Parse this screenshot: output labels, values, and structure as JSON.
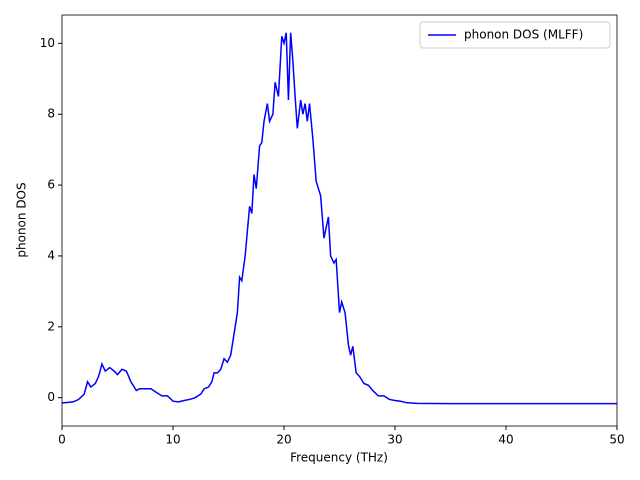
{
  "chart_data": {
    "type": "line",
    "x_label": "Frequency (THz)",
    "y_label": "phonon DOS",
    "xlim": [
      0,
      50
    ],
    "ylim": [
      -0.8,
      10.8
    ],
    "xticks": [
      0,
      10,
      20,
      30,
      40,
      50
    ],
    "yticks": [
      0,
      2,
      4,
      6,
      8,
      10
    ],
    "legend": "upper right",
    "x": [
      0,
      1,
      1.5,
      2,
      2.3,
      2.6,
      3,
      3.3,
      3.6,
      3.9,
      4.3,
      4.7,
      5,
      5.4,
      5.8,
      6.2,
      6.7,
      7,
      7.5,
      8,
      8.5,
      9,
      9.5,
      10,
      10.5,
      11,
      11.5,
      12,
      12.5,
      12.8,
      13.2,
      13.5,
      13.7,
      14,
      14.3,
      14.6,
      14.9,
      15.2,
      15.5,
      15.8,
      16,
      16.2,
      16.5,
      16.7,
      16.9,
      17.1,
      17.3,
      17.5,
      17.8,
      18,
      18.2,
      18.5,
      18.7,
      19,
      19.2,
      19.5,
      19.8,
      20,
      20.2,
      20.4,
      20.6,
      20.8,
      21,
      21.2,
      21.5,
      21.7,
      21.9,
      22.1,
      22.3,
      22.6,
      22.9,
      23.1,
      23.3,
      23.6,
      23.8,
      24,
      24.2,
      24.5,
      24.7,
      25,
      25.2,
      25.5,
      25.8,
      26,
      26.2,
      26.5,
      26.8,
      27.2,
      27.6,
      28,
      28.5,
      29,
      29.5,
      30,
      30.5,
      31,
      32,
      35,
      40,
      45,
      50
    ],
    "series": [
      {
        "name": "phonon DOS (MLFF)",
        "color": "#0000ff",
        "values": [
          -0.15,
          -0.12,
          -0.05,
          0.1,
          0.45,
          0.3,
          0.4,
          0.6,
          0.95,
          0.75,
          0.85,
          0.75,
          0.65,
          0.8,
          0.75,
          0.45,
          0.2,
          0.25,
          0.25,
          0.25,
          0.15,
          0.05,
          0.05,
          -0.1,
          -0.12,
          -0.08,
          -0.05,
          0.0,
          0.1,
          0.25,
          0.3,
          0.45,
          0.7,
          0.7,
          0.8,
          1.1,
          1.0,
          1.2,
          1.8,
          2.4,
          3.4,
          3.3,
          4.0,
          4.7,
          5.4,
          5.2,
          6.3,
          5.9,
          7.1,
          7.2,
          7.8,
          8.3,
          7.8,
          8.0,
          8.9,
          8.5,
          10.2,
          10.0,
          10.3,
          8.4,
          10.3,
          9.5,
          8.5,
          7.6,
          8.4,
          8.0,
          8.3,
          7.8,
          8.3,
          7.3,
          6.1,
          5.9,
          5.7,
          4.5,
          4.8,
          5.1,
          4.0,
          3.8,
          3.9,
          2.4,
          2.7,
          2.4,
          1.5,
          1.2,
          1.45,
          0.7,
          0.6,
          0.4,
          0.35,
          0.2,
          0.05,
          0.05,
          -0.05,
          -0.08,
          -0.1,
          -0.14,
          -0.16,
          -0.17,
          -0.17,
          -0.17,
          -0.17
        ]
      }
    ]
  }
}
